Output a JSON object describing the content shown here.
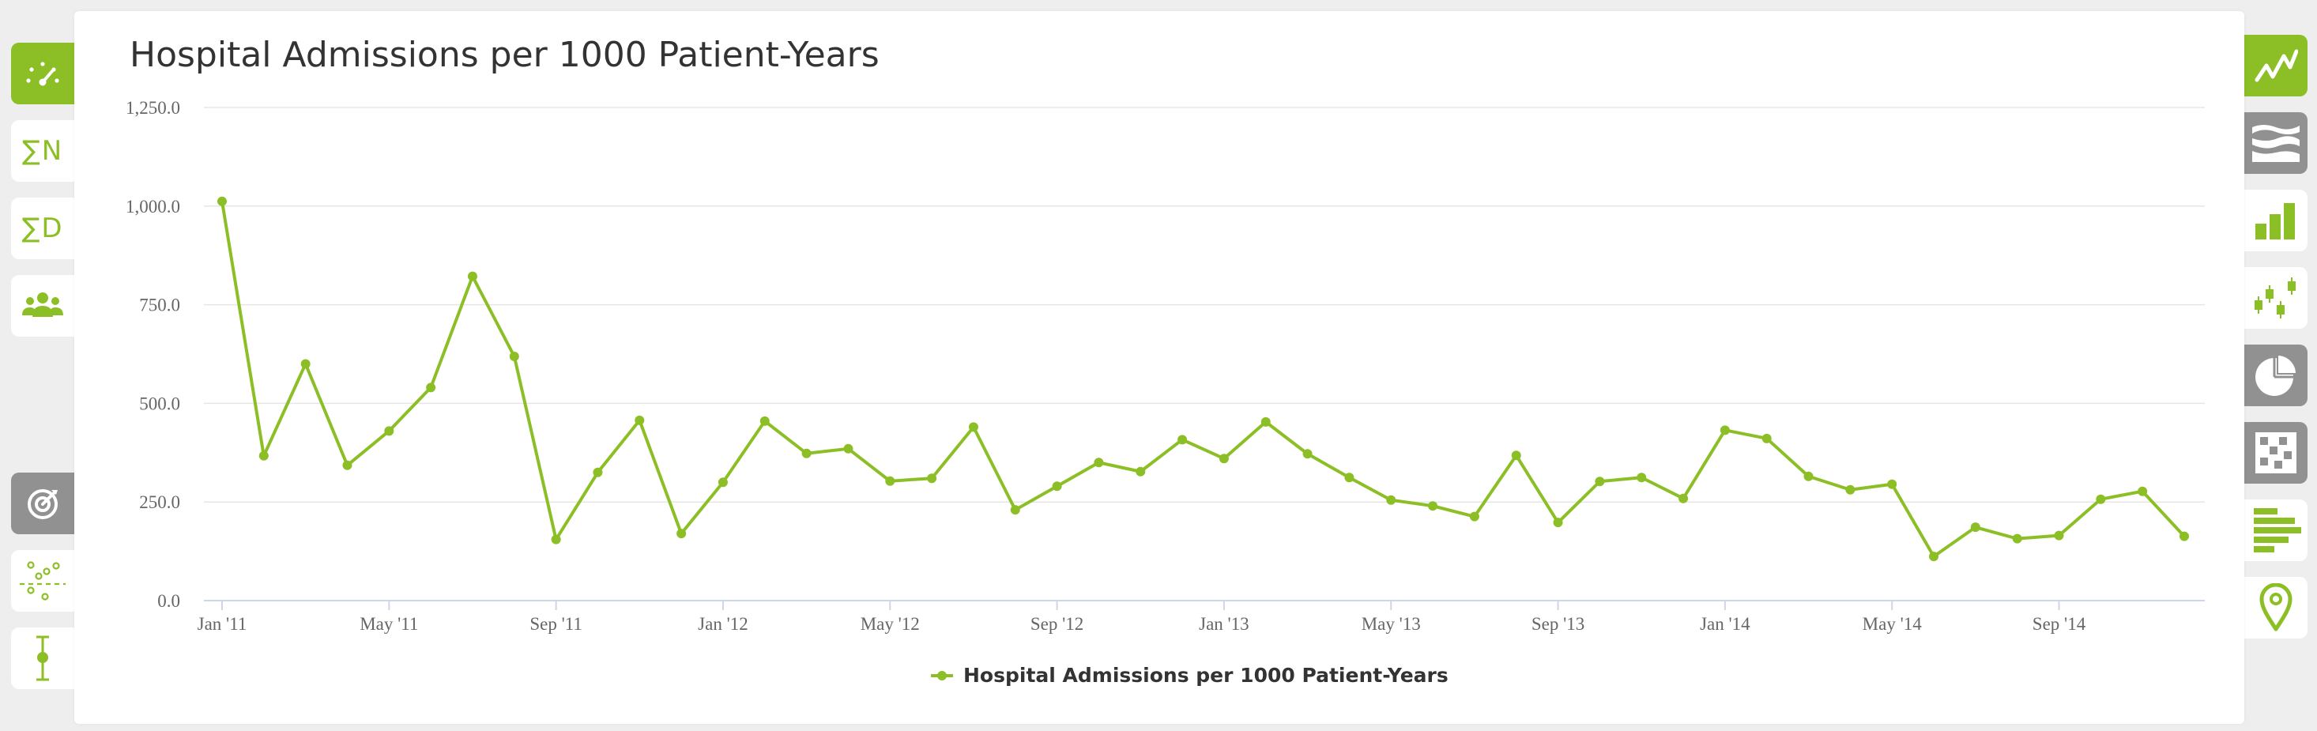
{
  "chart_data": {
    "type": "line",
    "title": "Hospital Admissions per 1000 Patient-Years",
    "xlabel": "",
    "ylabel": "",
    "ylim": [
      0,
      1250
    ],
    "y_ticks": [
      "1,250.0",
      "1,000.0",
      "750.0",
      "500.0",
      "250.0",
      "0.0"
    ],
    "x_ticks": [
      "Jan '11",
      "May '11",
      "Sep '11",
      "Jan '12",
      "May '12",
      "Sep '12",
      "Jan '13",
      "May '13",
      "Sep '13",
      "Jan '14",
      "May '14",
      "Sep '14"
    ],
    "x": [
      "Jan '11",
      "Feb '11",
      "Mar '11",
      "Apr '11",
      "May '11",
      "Jun '11",
      "Jul '11",
      "Aug '11",
      "Sep '11",
      "Oct '11",
      "Nov '11",
      "Dec '11",
      "Jan '12",
      "Feb '12",
      "Mar '12",
      "Apr '12",
      "May '12",
      "Jun '12",
      "Jul '12",
      "Aug '12",
      "Sep '12",
      "Oct '12",
      "Nov '12",
      "Dec '12",
      "Jan '13",
      "Feb '13",
      "Mar '13",
      "Apr '13",
      "May '13",
      "Jun '13",
      "Jul '13",
      "Aug '13",
      "Sep '13",
      "Oct '13",
      "Nov '13",
      "Dec '13",
      "Jan '14",
      "Feb '14",
      "Mar '14",
      "Apr '14",
      "May '14",
      "Jun '14",
      "Jul '14",
      "Aug '14",
      "Sep '14",
      "Oct '14",
      "Nov '14",
      "Dec '14"
    ],
    "series": [
      {
        "name": "Hospital Admissions per 1000 Patient-Years",
        "color": "#8cbf26",
        "values": [
          1012,
          367,
          600,
          343,
          430,
          540,
          822,
          619,
          155,
          325,
          457,
          170,
          300,
          455,
          373,
          385,
          303,
          310,
          440,
          230,
          290,
          350,
          327,
          408,
          360,
          453,
          372,
          312,
          255,
          240,
          213,
          368,
          198,
          302,
          312,
          259,
          432,
          411,
          315,
          281,
          295,
          112,
          186,
          157,
          165,
          257,
          277,
          163
        ]
      }
    ],
    "legend_position": "bottom-center",
    "grid": true
  },
  "icons": {
    "left": [
      "gauge-icon",
      "sum-n-icon",
      "sum-d-icon",
      "people-icon",
      "target-icon",
      "scatter-dots-icon",
      "error-bar-icon"
    ],
    "right": [
      "line-chart-icon",
      "stream-icon",
      "bar-chart-icon",
      "candlestick-icon",
      "pie-chart-icon",
      "heatmap-icon",
      "horizontal-bar-icon",
      "map-pin-icon"
    ]
  },
  "sidebar": {
    "sum_n_label": "∑N",
    "sum_d_label": "∑D"
  },
  "colors": {
    "accent": "#8cbf26",
    "inactive": "#919191",
    "grid": "#e6e6e6",
    "axis": "#ccd6eb"
  }
}
